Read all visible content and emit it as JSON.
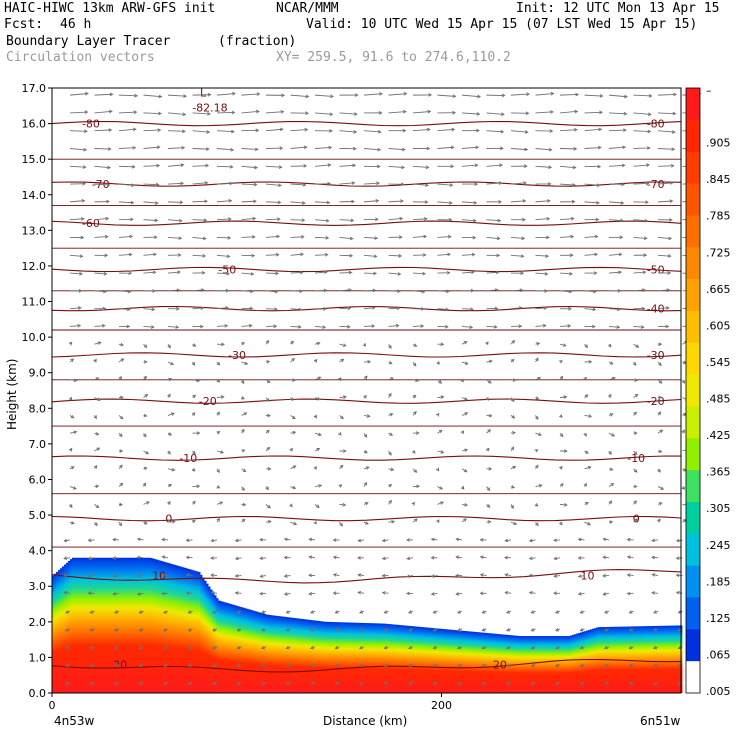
{
  "header": {
    "model": "HAIC-HIWC 13km ARW-GFS init",
    "org": "NCAR/MMM",
    "init": "Init: 12 UTC Mon 13 Apr 15",
    "fcst_label": "Fcst:",
    "fcst_value": "46 h",
    "valid": "Valid: 10 UTC Wed 15 Apr 15 (07 LST Wed 15 Apr 15)",
    "field": "Boundary Layer Tracer",
    "field_units": "(fraction)",
    "overlay": "Circulation vectors",
    "xy": "XY= 259.5, 91.6 to 274.6,110.2"
  },
  "chart_data": {
    "type": "heatmap",
    "title": "Boundary Layer Tracer",
    "xlabel": "Distance (km)",
    "ylabel": "Height (km)",
    "x_endpoints": [
      "4n53w",
      "6n51w"
    ],
    "x_ticks": [
      {
        "value": 0,
        "label": "0"
      },
      {
        "value": 200,
        "label": "200"
      }
    ],
    "xlim": [
      0,
      323
    ],
    "ylim": [
      0,
      17
    ],
    "y_ticks": [
      "0.0",
      "1.0",
      "2.0",
      "3.0",
      "4.0",
      "5.0",
      "6.0",
      "7.0",
      "8.0",
      "9.0",
      "10.0",
      "11.0",
      "12.0",
      "13.0",
      "14.0",
      "15.0",
      "16.0",
      "17.0"
    ],
    "colorbar": {
      "labels": [
        "–",
        ".905",
        ".845",
        ".785",
        ".725",
        ".665",
        ".605",
        ".545",
        ".485",
        ".425",
        ".365",
        ".305",
        ".245",
        ".185",
        ".125",
        ".065",
        ".005"
      ],
      "colors": [
        "#ff1a1a",
        "#ff2600",
        "#ff3d00",
        "#ff5500",
        "#ff6e00",
        "#ff8800",
        "#ffa200",
        "#ffbe00",
        "#ffd800",
        "#f0e800",
        "#c8f000",
        "#90f000",
        "#40e060",
        "#00d0a0",
        "#00c0e0",
        "#0090f0",
        "#0060f0",
        "#0030e0",
        "#ffffff"
      ]
    },
    "tracer_top_km": [
      {
        "x": 0,
        "z": 3.3
      },
      {
        "x": 10,
        "z": 3.8
      },
      {
        "x": 50,
        "z": 3.8
      },
      {
        "x": 75,
        "z": 3.4
      },
      {
        "x": 85,
        "z": 2.6
      },
      {
        "x": 110,
        "z": 2.2
      },
      {
        "x": 140,
        "z": 2.0
      },
      {
        "x": 170,
        "z": 1.95
      },
      {
        "x": 210,
        "z": 1.75
      },
      {
        "x": 240,
        "z": 1.6
      },
      {
        "x": 265,
        "z": 1.6
      },
      {
        "x": 280,
        "z": 1.85
      },
      {
        "x": 323,
        "z": 1.9
      }
    ],
    "temperature_contours": [
      {
        "label": "-80",
        "z": 16.0
      },
      {
        "label": "-70",
        "z": 14.3
      },
      {
        "label": "-60",
        "z": 13.2
      },
      {
        "label": "-50",
        "z": 11.9
      },
      {
        "label": "-40",
        "z": 10.8
      },
      {
        "label": "-30",
        "z": 9.5
      },
      {
        "label": "-20",
        "z": 8.2
      },
      {
        "label": "-10",
        "z": 6.6
      },
      {
        "label": "0",
        "z": 4.9
      },
      {
        "label": "10",
        "z": 3.3
      },
      {
        "label": "20",
        "z": 0.8
      }
    ],
    "low_marker": {
      "symbol": "L",
      "value": "-82.18"
    }
  }
}
